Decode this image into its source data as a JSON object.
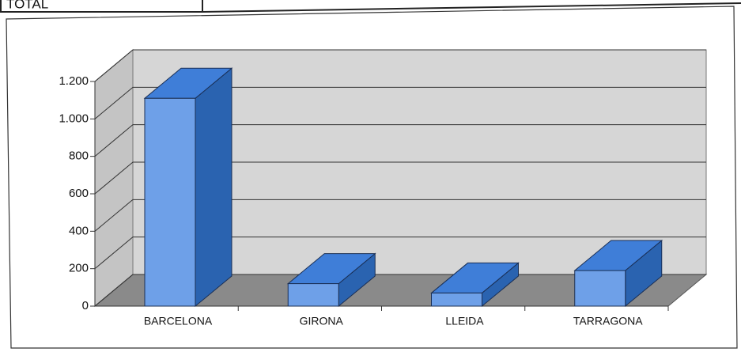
{
  "header": {
    "table_cell": "TOTAL"
  },
  "chart_data": {
    "type": "bar3d",
    "categories": [
      "BARCELONA",
      "GIRONA",
      "LLEIDA",
      "TARRAGONA"
    ],
    "values": [
      1110,
      120,
      70,
      190
    ],
    "color": "#6ea0e8",
    "ylim": [
      0,
      1200
    ],
    "yticks": [
      0,
      200,
      400,
      600,
      800,
      {
        "value": 1000,
        "label": "1.000"
      },
      {
        "value": 1200,
        "label": "1.200"
      }
    ],
    "grid": true
  }
}
